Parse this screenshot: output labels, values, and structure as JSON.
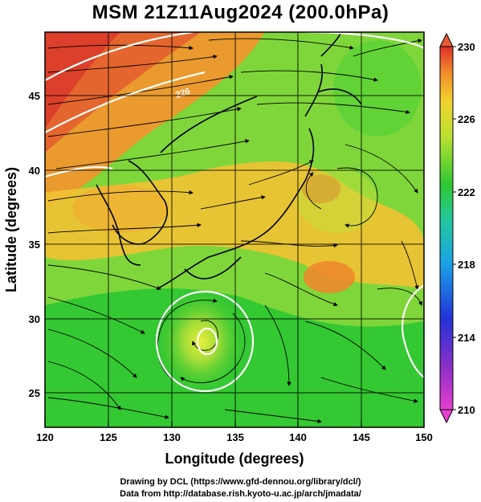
{
  "title": "MSM 21Z11Aug2024 (200.0hPa)",
  "x_axis": {
    "label": "Longitude (degrees)",
    "ticks": [
      "120",
      "125",
      "130",
      "135",
      "140",
      "145",
      "150"
    ]
  },
  "y_axis": {
    "label": "Latitude  (degrees)",
    "ticks": [
      "25",
      "30",
      "35",
      "40",
      "45"
    ]
  },
  "colorbar": {
    "ticks": [
      "230",
      "226",
      "222",
      "218",
      "214",
      "210"
    ]
  },
  "contour_label": "226",
  "credits": [
    "Drawing by DCL (https://www.gfd-dennou.org/library/dcl/)",
    "Data from http://database.rish.kyoto-u.ac.jp/arch/jmadata/"
  ],
  "colors": {
    "hot": "#e0402a",
    "warm": "#f09a2a",
    "mid": "#f2cf35",
    "cool": "#7fd83a",
    "green": "#2fc832",
    "blue": "#1f4fe0",
    "magenta": "#e040c8"
  }
}
